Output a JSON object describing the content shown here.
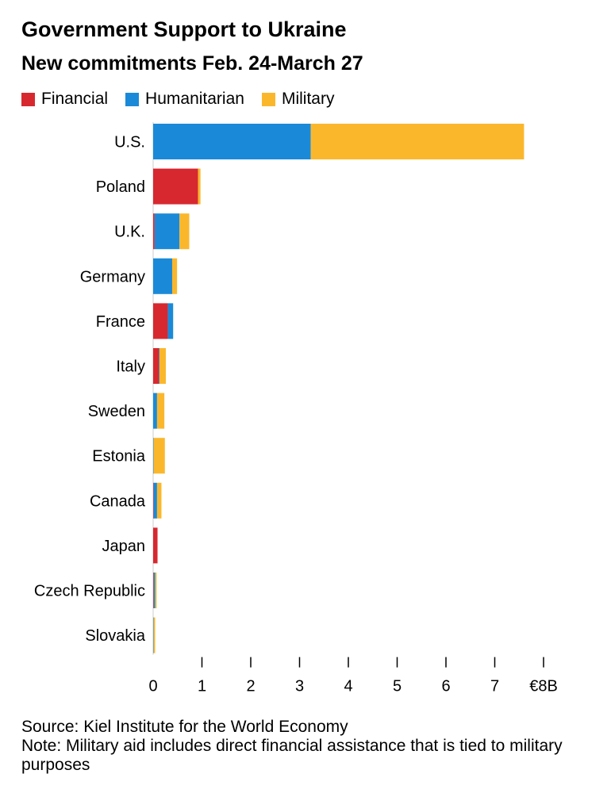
{
  "header": {
    "title": "Government Support to Ukraine",
    "subtitle": "New commitments Feb. 24-March 27"
  },
  "legend": [
    {
      "label": "Financial",
      "color": "#d7282f"
    },
    {
      "label": "Humanitarian",
      "color": "#1a8ad8"
    },
    {
      "label": "Military",
      "color": "#fbb72c"
    }
  ],
  "footer": {
    "source": "Source: Kiel Institute for the World Economy",
    "note": "Note: Military aid includes direct financial assistance that is tied to military purposes"
  },
  "chart_data": {
    "type": "bar",
    "orientation": "horizontal",
    "stacked": true,
    "categories": [
      "U.S.",
      "Poland",
      "U.K.",
      "Germany",
      "France",
      "Italy",
      "Sweden",
      "Estonia",
      "Canada",
      "Japan",
      "Czech Republic",
      "Slovakia"
    ],
    "series": [
      {
        "name": "Financial",
        "color": "#d7282f",
        "values": [
          0,
          0.92,
          0.03,
          0,
          0.3,
          0.12,
          0,
          0,
          0.01,
          0.09,
          0.01,
          0
        ]
      },
      {
        "name": "Humanitarian",
        "color": "#1a8ad8",
        "values": [
          3.23,
          0,
          0.51,
          0.39,
          0.11,
          0.01,
          0.08,
          0.01,
          0.07,
          0,
          0.03,
          0.01
        ]
      },
      {
        "name": "Military",
        "color": "#fbb72c",
        "values": [
          4.37,
          0.05,
          0.2,
          0.1,
          0,
          0.13,
          0.15,
          0.23,
          0.09,
          0,
          0.03,
          0.03
        ]
      }
    ],
    "x_ticks": [
      "0",
      "1",
      "2",
      "3",
      "4",
      "5",
      "6",
      "7",
      "€8B"
    ],
    "xlim": [
      0,
      8
    ],
    "grid": false,
    "legend_position": "top-left"
  }
}
